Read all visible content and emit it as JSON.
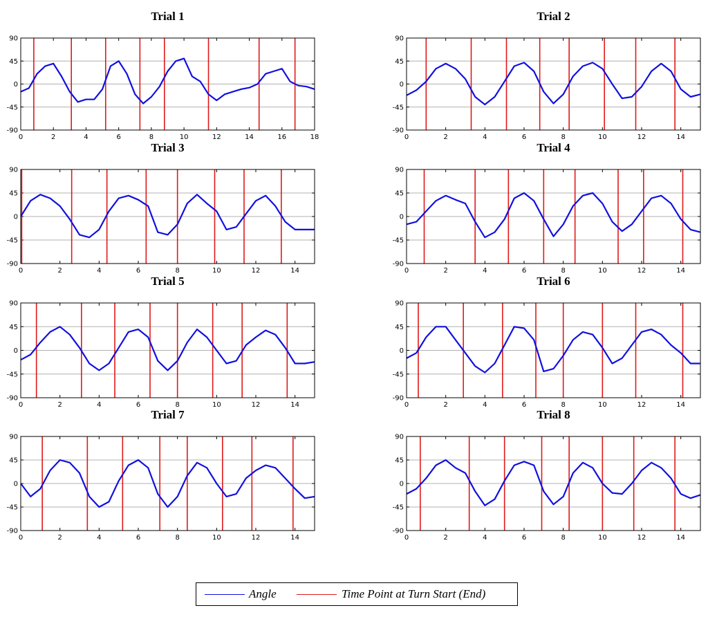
{
  "legend": {
    "angle_label": "Angle",
    "turn_label": "Time Point at Turn Start (End)"
  },
  "colors": {
    "angle": "#1010e0",
    "turn": "#e01818",
    "grid": "#b0b0b0",
    "axis": "#000000"
  },
  "chart_data": [
    {
      "type": "line",
      "title": "Trial 1",
      "xlim": [
        0,
        18
      ],
      "xticks": [
        0,
        2,
        4,
        6,
        8,
        10,
        12,
        14,
        16,
        18
      ],
      "ylim": [
        -90,
        90
      ],
      "yticks": [
        -90,
        -45,
        0,
        45,
        90
      ],
      "grid": "horizontal",
      "series": [
        {
          "name": "Angle",
          "x": [
            0,
            0.5,
            1,
            1.5,
            2,
            2.5,
            3,
            3.5,
            4,
            4.5,
            5,
            5.5,
            6,
            6.5,
            7,
            7.5,
            8,
            8.5,
            9,
            9.5,
            10,
            10.5,
            11,
            11.5,
            12,
            12.5,
            13,
            13.5,
            14,
            14.5,
            15,
            15.5,
            16,
            16.5,
            17,
            17.5,
            18
          ],
          "y": [
            -15,
            -8,
            20,
            35,
            40,
            15,
            -15,
            -35,
            -30,
            -30,
            -10,
            35,
            45,
            20,
            -20,
            -38,
            -25,
            -5,
            25,
            45,
            50,
            15,
            5,
            -20,
            -32,
            -20,
            -15,
            -10,
            -7,
            0,
            20,
            25,
            30,
            5,
            -3,
            -5,
            -10
          ]
        },
        {
          "name": "Time Point at Turn Start (End)",
          "markers_x": [
            0.8,
            3.1,
            5.2,
            7.3,
            8.8,
            11.5,
            14.6,
            16.8
          ]
        }
      ]
    },
    {
      "type": "line",
      "title": "Trial 2",
      "xlim": [
        0,
        15
      ],
      "xticks": [
        0,
        2,
        4,
        6,
        8,
        10,
        12,
        14
      ],
      "ylim": [
        -90,
        90
      ],
      "yticks": [
        -90,
        -45,
        0,
        45,
        90
      ],
      "grid": "horizontal",
      "series": [
        {
          "name": "Angle",
          "x": [
            0,
            0.5,
            1,
            1.5,
            2,
            2.5,
            3,
            3.5,
            4,
            4.5,
            5,
            5.5,
            6,
            6.5,
            7,
            7.5,
            8,
            8.5,
            9,
            9.5,
            10,
            10.5,
            11,
            11.5,
            12,
            12.5,
            13,
            13.5,
            14,
            14.5,
            15
          ],
          "y": [
            -22,
            -12,
            5,
            30,
            40,
            30,
            10,
            -25,
            -40,
            -25,
            5,
            35,
            42,
            25,
            -15,
            -38,
            -20,
            15,
            35,
            42,
            30,
            0,
            -28,
            -25,
            -5,
            25,
            40,
            25,
            -10,
            -25,
            -20
          ]
        },
        {
          "name": "Time Point at Turn Start (End)",
          "markers_x": [
            1.0,
            3.3,
            5.1,
            6.8,
            8.3,
            10.1,
            11.7,
            13.7
          ]
        }
      ]
    },
    {
      "type": "line",
      "title": "Trial 3",
      "xlim": [
        0,
        15
      ],
      "xticks": [
        0,
        2,
        4,
        6,
        8,
        10,
        12,
        14
      ],
      "ylim": [
        -90,
        90
      ],
      "yticks": [
        -90,
        -45,
        0,
        45,
        90
      ],
      "grid": "horizontal",
      "series": [
        {
          "name": "Angle",
          "x": [
            0,
            0.5,
            1,
            1.5,
            2,
            2.5,
            3,
            3.5,
            4,
            4.5,
            5,
            5.5,
            6,
            6.5,
            7,
            7.5,
            8,
            8.5,
            9,
            9.5,
            10,
            10.5,
            11,
            11.5,
            12,
            12.5,
            13,
            13.5,
            14,
            14.5,
            15
          ],
          "y": [
            0,
            30,
            42,
            35,
            20,
            -5,
            -35,
            -40,
            -25,
            10,
            35,
            40,
            32,
            20,
            -30,
            -35,
            -15,
            25,
            42,
            25,
            10,
            -25,
            -20,
            5,
            30,
            40,
            20,
            -10,
            -25,
            -25,
            -25
          ]
        },
        {
          "name": "Time Point at Turn Start (End)",
          "markers_x": [
            0.05,
            2.6,
            4.4,
            6.4,
            8.0,
            9.9,
            11.4,
            13.3
          ]
        }
      ]
    },
    {
      "type": "line",
      "title": "Trial 4",
      "xlim": [
        0,
        15
      ],
      "xticks": [
        0,
        2,
        4,
        6,
        8,
        10,
        12,
        14
      ],
      "ylim": [
        -90,
        90
      ],
      "yticks": [
        -90,
        -45,
        0,
        45,
        90
      ],
      "grid": "horizontal",
      "series": [
        {
          "name": "Angle",
          "x": [
            0,
            0.5,
            1,
            1.5,
            2,
            2.5,
            3,
            3.5,
            4,
            4.5,
            5,
            5.5,
            6,
            6.5,
            7,
            7.5,
            8,
            8.5,
            9,
            9.5,
            10,
            10.5,
            11,
            11.5,
            12,
            12.5,
            13,
            13.5,
            14,
            14.5,
            15
          ],
          "y": [
            -15,
            -10,
            10,
            30,
            40,
            32,
            25,
            -10,
            -40,
            -30,
            -5,
            35,
            45,
            30,
            -5,
            -38,
            -15,
            20,
            40,
            45,
            25,
            -10,
            -28,
            -15,
            10,
            35,
            40,
            25,
            -5,
            -25,
            -30
          ]
        },
        {
          "name": "Time Point at Turn Start (End)",
          "markers_x": [
            0.9,
            3.5,
            5.2,
            7.0,
            8.6,
            10.8,
            12.1,
            14.1
          ]
        }
      ]
    },
    {
      "type": "line",
      "title": "Trial 5",
      "xlim": [
        0,
        15
      ],
      "xticks": [
        0,
        2,
        4,
        6,
        8,
        10,
        12,
        14
      ],
      "ylim": [
        -90,
        90
      ],
      "yticks": [
        -90,
        -45,
        0,
        45,
        90
      ],
      "grid": "horizontal",
      "series": [
        {
          "name": "Angle",
          "x": [
            0,
            0.5,
            1,
            1.5,
            2,
            2.5,
            3,
            3.5,
            4,
            4.5,
            5,
            5.5,
            6,
            6.5,
            7,
            7.5,
            8,
            8.5,
            9,
            9.5,
            10,
            10.5,
            11,
            11.5,
            12,
            12.5,
            13,
            13.5,
            14,
            14.5,
            15
          ],
          "y": [
            -18,
            -8,
            15,
            35,
            45,
            30,
            5,
            -25,
            -38,
            -25,
            5,
            35,
            40,
            25,
            -20,
            -38,
            -20,
            15,
            40,
            25,
            0,
            -25,
            -20,
            10,
            25,
            38,
            30,
            5,
            -25,
            -25,
            -22
          ]
        },
        {
          "name": "Time Point at Turn Start (End)",
          "markers_x": [
            0.8,
            3.1,
            4.8,
            6.6,
            8.0,
            9.8,
            11.3,
            13.6
          ]
        }
      ]
    },
    {
      "type": "line",
      "title": "Trial 6",
      "xlim": [
        0,
        15
      ],
      "xticks": [
        0,
        2,
        4,
        6,
        8,
        10,
        12,
        14
      ],
      "ylim": [
        -90,
        90
      ],
      "yticks": [
        -90,
        -45,
        0,
        45,
        90
      ],
      "grid": "horizontal",
      "series": [
        {
          "name": "Angle",
          "x": [
            0,
            0.5,
            1,
            1.5,
            2,
            2.5,
            3,
            3.5,
            4,
            4.5,
            5,
            5.5,
            6,
            6.5,
            7,
            7.5,
            8,
            8.5,
            9,
            9.5,
            10,
            10.5,
            11,
            11.5,
            12,
            12.5,
            13,
            13.5,
            14,
            14.5,
            15
          ],
          "y": [
            -15,
            -5,
            25,
            45,
            45,
            20,
            -5,
            -30,
            -42,
            -25,
            10,
            45,
            42,
            20,
            -40,
            -35,
            -10,
            20,
            35,
            30,
            5,
            -25,
            -15,
            10,
            35,
            40,
            30,
            10,
            -5,
            -25,
            -25
          ]
        },
        {
          "name": "Time Point at Turn Start (End)",
          "markers_x": [
            0.6,
            2.9,
            4.9,
            6.6,
            8.0,
            10.0,
            11.7,
            14.1
          ]
        }
      ]
    },
    {
      "type": "line",
      "title": "Trial 7",
      "xlim": [
        0,
        15
      ],
      "xticks": [
        0,
        2,
        4,
        6,
        8,
        10,
        12,
        14
      ],
      "ylim": [
        -90,
        90
      ],
      "yticks": [
        -90,
        -45,
        0,
        45,
        90
      ],
      "grid": "horizontal",
      "series": [
        {
          "name": "Angle",
          "x": [
            0,
            0.5,
            1,
            1.5,
            2,
            2.5,
            3,
            3.5,
            4,
            4.5,
            5,
            5.5,
            6,
            6.5,
            7,
            7.5,
            8,
            8.5,
            9,
            9.5,
            10,
            10.5,
            11,
            11.5,
            12,
            12.5,
            13,
            13.5,
            14,
            14.5,
            15
          ],
          "y": [
            0,
            -25,
            -10,
            25,
            45,
            40,
            20,
            -25,
            -45,
            -35,
            5,
            35,
            45,
            30,
            -20,
            -45,
            -25,
            15,
            40,
            30,
            0,
            -25,
            -20,
            10,
            25,
            35,
            30,
            10,
            -10,
            -28,
            -25
          ]
        },
        {
          "name": "Time Point at Turn Start (End)",
          "markers_x": [
            1.1,
            3.4,
            5.2,
            7.1,
            8.5,
            10.3,
            11.8,
            13.9
          ]
        }
      ]
    },
    {
      "type": "line",
      "title": "Trial 8",
      "xlim": [
        0,
        15
      ],
      "xticks": [
        0,
        2,
        4,
        6,
        8,
        10,
        12,
        14
      ],
      "ylim": [
        -90,
        90
      ],
      "yticks": [
        -90,
        -45,
        0,
        45,
        90
      ],
      "grid": "horizontal",
      "series": [
        {
          "name": "Angle",
          "x": [
            0,
            0.5,
            1,
            1.5,
            2,
            2.5,
            3,
            3.5,
            4,
            4.5,
            5,
            5.5,
            6,
            6.5,
            7,
            7.5,
            8,
            8.5,
            9,
            9.5,
            10,
            10.5,
            11,
            11.5,
            12,
            12.5,
            13,
            13.5,
            14,
            14.5,
            15
          ],
          "y": [
            -20,
            -10,
            10,
            35,
            45,
            30,
            20,
            -15,
            -42,
            -30,
            5,
            35,
            42,
            35,
            -15,
            -40,
            -25,
            20,
            40,
            30,
            0,
            -18,
            -20,
            0,
            25,
            40,
            30,
            10,
            -20,
            -28,
            -22
          ]
        },
        {
          "name": "Time Point at Turn Start (End)",
          "markers_x": [
            0.7,
            3.2,
            5.0,
            6.9,
            8.3,
            10.0,
            11.6,
            13.7
          ]
        }
      ]
    }
  ]
}
